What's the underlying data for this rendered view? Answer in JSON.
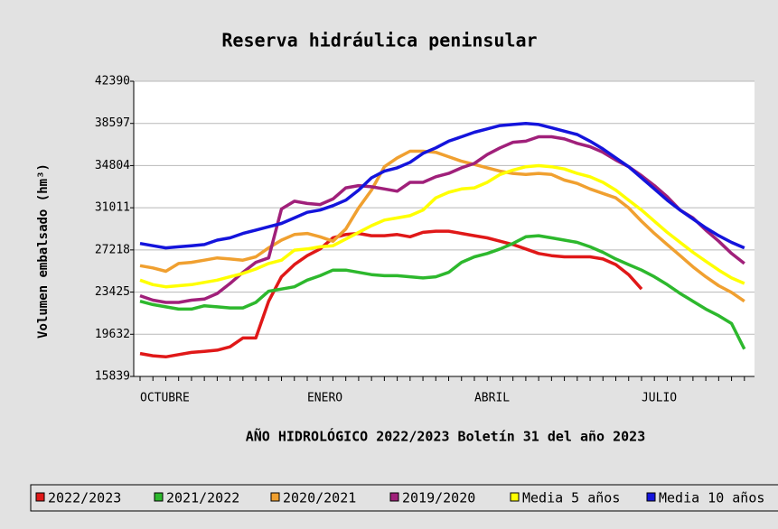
{
  "chart_data": {
    "type": "line",
    "title": "Reserva hidráulica peninsular",
    "x_label": "AÑO HIDROLÓGICO 2022/2023 Boletín 31 del año 2023",
    "y_label": "Volumen embalsado (hm³)",
    "categories": [
      "OCTUBRE",
      null,
      null,
      null,
      null,
      null,
      null,
      null,
      null,
      null,
      null,
      null,
      null,
      "ENERO",
      null,
      null,
      null,
      null,
      null,
      null,
      null,
      null,
      null,
      null,
      null,
      null,
      "ABRIL",
      null,
      null,
      null,
      null,
      null,
      null,
      null,
      null,
      null,
      null,
      null,
      null,
      "JULIO",
      null,
      null,
      null,
      null,
      null,
      null,
      null,
      null
    ],
    "ylim": [
      15839,
      42390
    ],
    "yticks": [
      15839,
      19632,
      23425,
      27218,
      31011,
      34804,
      38597,
      42390
    ],
    "grid": true,
    "series": [
      {
        "name": "2022/2023",
        "color": "#e01818",
        "values": [
          17900,
          17700,
          17600,
          17800,
          18000,
          18100,
          18200,
          18500,
          19300,
          19300,
          22600,
          24800,
          25900,
          26700,
          27300,
          28300,
          28600,
          28700,
          28500,
          28500,
          28600,
          28400,
          28800,
          28900,
          28900,
          28700,
          28500,
          28300,
          28000,
          27700,
          27300,
          26900,
          26700,
          26600,
          26600,
          26600,
          26400,
          25900,
          25000,
          23700,
          null,
          null,
          null,
          null,
          null,
          null,
          null,
          null
        ]
      },
      {
        "name": "2021/2022",
        "color": "#2db82d",
        "values": [
          22600,
          22300,
          22100,
          21900,
          21900,
          22200,
          22100,
          22000,
          22000,
          22500,
          23500,
          23700,
          23900,
          24500,
          24900,
          25400,
          25400,
          25200,
          25000,
          24900,
          24900,
          24800,
          24700,
          24800,
          25200,
          26100,
          26600,
          26900,
          27300,
          27800,
          28400,
          28500,
          28300,
          28100,
          27900,
          27500,
          27000,
          26400,
          25900,
          25400,
          24800,
          24100,
          23300,
          22600,
          21900,
          21300,
          20600,
          18300
        ]
      },
      {
        "name": "2020/2021",
        "color": "#f0a030",
        "values": [
          25800,
          25600,
          25300,
          26000,
          26100,
          26300,
          26500,
          26400,
          26300,
          26600,
          27400,
          28100,
          28600,
          28700,
          28400,
          28000,
          29100,
          31000,
          32600,
          34700,
          35500,
          36100,
          36100,
          36000,
          35600,
          35200,
          34900,
          34600,
          34300,
          34100,
          34000,
          34100,
          34000,
          33500,
          33200,
          32700,
          32300,
          31900,
          31000,
          29800,
          28700,
          27700,
          26700,
          25700,
          24800,
          24000,
          23400,
          22600
        ]
      },
      {
        "name": "2019/2020",
        "color": "#a0207a",
        "values": [
          23100,
          22700,
          22500,
          22500,
          22700,
          22800,
          23300,
          24200,
          25200,
          26100,
          26500,
          30900,
          31600,
          31400,
          31300,
          31800,
          32800,
          33000,
          32900,
          32700,
          32500,
          33300,
          33300,
          33800,
          34100,
          34600,
          35000,
          35800,
          36400,
          36900,
          37000,
          37400,
          37400,
          37200,
          36800,
          36500,
          36000,
          35300,
          34700,
          33900,
          33000,
          32000,
          30800,
          30100,
          29000,
          28000,
          26900,
          26000
        ]
      },
      {
        "name": "Media 5 años",
        "color": "#ffff00",
        "values": [
          24500,
          24100,
          23900,
          24000,
          24100,
          24300,
          24500,
          24800,
          25100,
          25500,
          26000,
          26300,
          27200,
          27300,
          27500,
          27600,
          28200,
          28800,
          29400,
          29900,
          30100,
          30300,
          30800,
          31900,
          32400,
          32700,
          32800,
          33300,
          34000,
          34400,
          34700,
          34800,
          34700,
          34500,
          34100,
          33800,
          33300,
          32600,
          31700,
          30800,
          29800,
          28800,
          27900,
          27000,
          26200,
          25400,
          24700,
          24200
        ]
      },
      {
        "name": "Media 10 años",
        "color": "#1414dc",
        "values": [
          27800,
          27600,
          27400,
          27500,
          27600,
          27700,
          28100,
          28300,
          28700,
          29000,
          29300,
          29600,
          30100,
          30600,
          30800,
          31200,
          31700,
          32600,
          33700,
          34300,
          34600,
          35100,
          35900,
          36400,
          37000,
          37400,
          37800,
          38100,
          38400,
          38500,
          38600,
          38500,
          38200,
          37900,
          37600,
          37000,
          36300,
          35500,
          34700,
          33700,
          32700,
          31700,
          30800,
          30000,
          29200,
          28500,
          27900,
          27400
        ]
      }
    ]
  }
}
